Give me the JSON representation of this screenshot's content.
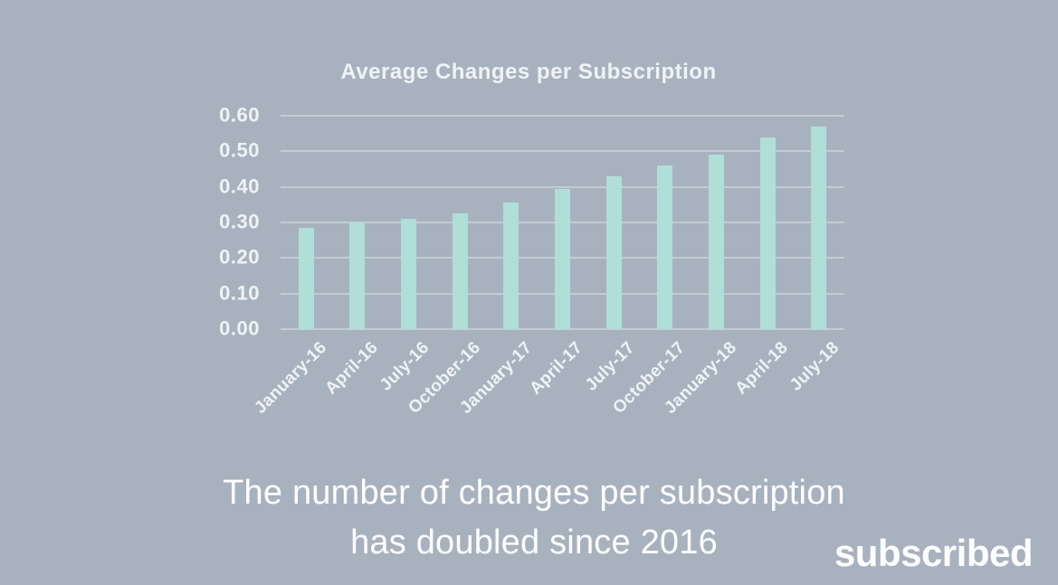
{
  "page": {
    "background_color": "#a8b2bf"
  },
  "chart_data": {
    "type": "bar",
    "title": "Average Changes per Subscription",
    "categories": [
      "January-16",
      "April-16",
      "July-16",
      "October-16",
      "January-17",
      "April-17",
      "July-17",
      "October-17",
      "January-18",
      "April-18",
      "July-18"
    ],
    "values": [
      0.285,
      0.3,
      0.31,
      0.325,
      0.355,
      0.395,
      0.43,
      0.46,
      0.49,
      0.54,
      0.57
    ],
    "xlabel": "",
    "ylabel": "",
    "ylim": [
      0,
      0.6
    ],
    "y_tick_step": 0.1,
    "y_tick_labels": [
      "0.60",
      "0.50",
      "0.40",
      "0.30",
      "0.20",
      "0.10",
      "0.00"
    ],
    "x_tick_rotation_deg": 45,
    "grid": true,
    "legend": "none",
    "bar_color": "#b0ded8",
    "gridline_color": "#c3ccd5",
    "axis_text_color": "#eff3f6"
  },
  "caption": {
    "line1": "The number of changes per subscription",
    "line2": "has doubled since 2016",
    "text_color": "#fdfeff"
  },
  "brand": {
    "logo_text": "subscribed"
  }
}
